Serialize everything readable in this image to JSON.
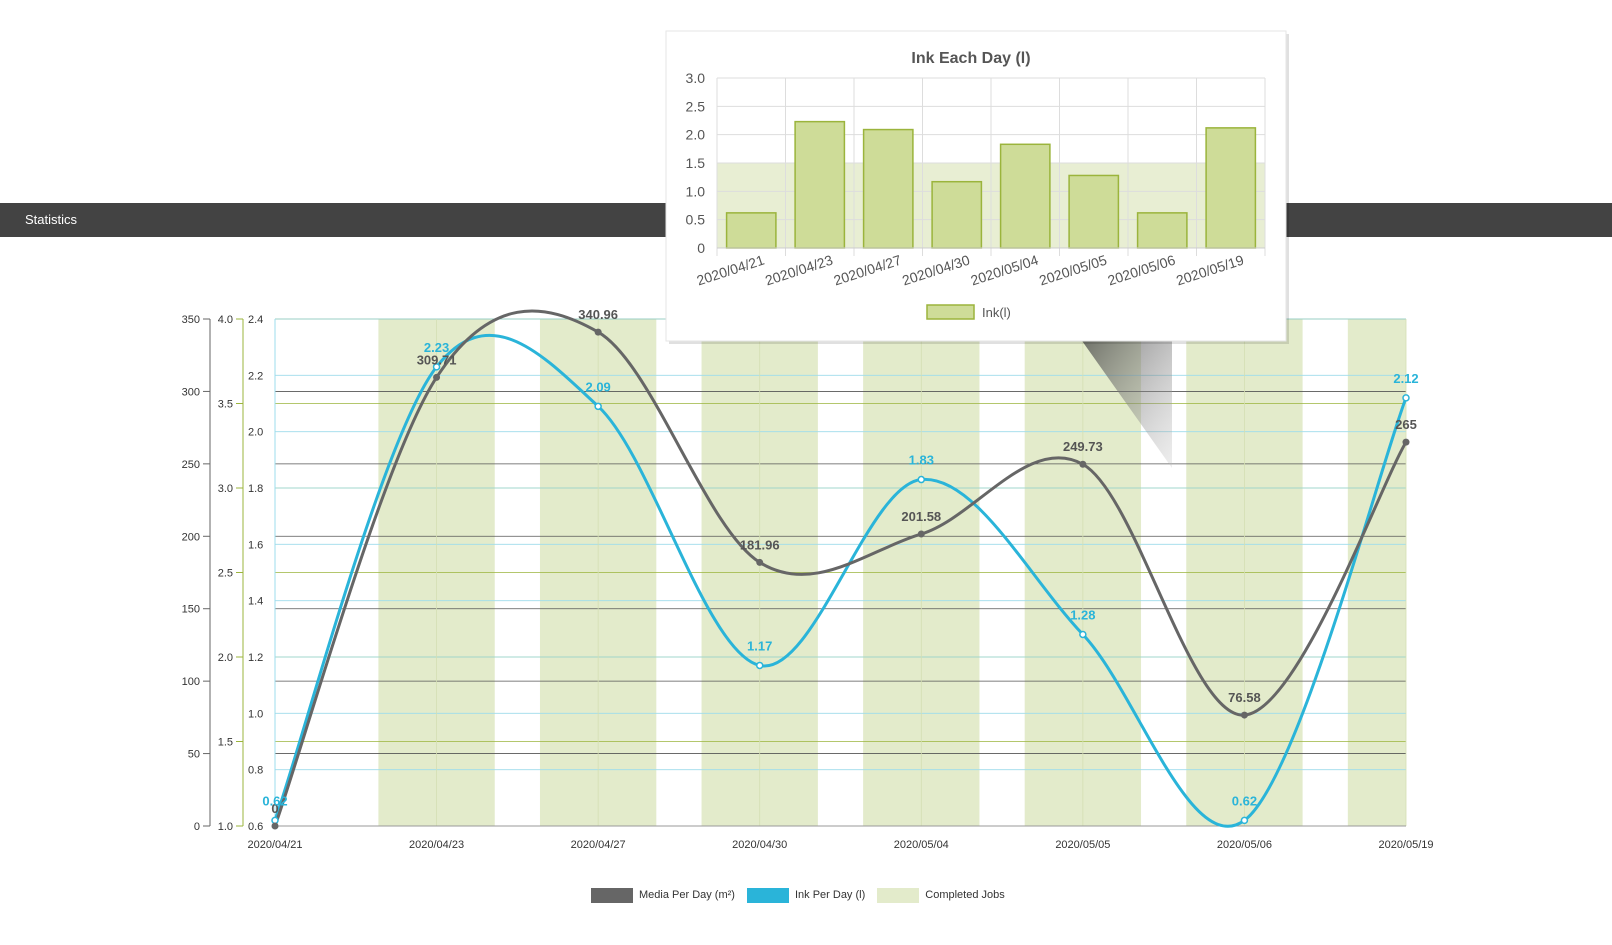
{
  "header": {
    "title": "Statistics"
  },
  "colors": {
    "media": "#666666",
    "ink": "#2ab4d9",
    "jobs_fill": "#e3ebcb",
    "jobs_axis": "#9bb43c",
    "header_bg": "#434343",
    "bar_fill": "#cedc98",
    "bar_stroke": "#9bb43c"
  },
  "legend": {
    "media_label": "Media Per Day (m²)",
    "ink_label": "Ink Per Day (l)",
    "jobs_label": "Completed Jobs"
  },
  "chart_data": [
    {
      "type": "line",
      "categories": [
        "2020/04/21",
        "2020/04/23",
        "2020/04/27",
        "2020/04/30",
        "2020/05/04",
        "2020/05/05",
        "2020/05/06",
        "2020/05/19"
      ],
      "series": [
        {
          "name": "Media Per Day (m²)",
          "axis": "media",
          "values": [
            0,
            309.71,
            340.96,
            181.96,
            201.58,
            249.73,
            76.58,
            265
          ]
        },
        {
          "name": "Ink Per Day (l)",
          "axis": "ink",
          "values": [
            0.62,
            2.23,
            2.09,
            1.17,
            1.83,
            1.28,
            0.62,
            2.12
          ]
        },
        {
          "name": "Completed Jobs",
          "axis": "jobs",
          "type": "bar",
          "values": [
            null,
            null,
            null,
            null,
            null,
            null,
            null,
            null
          ]
        }
      ],
      "axes": {
        "media": {
          "min": 0,
          "max": 350,
          "ticks": [
            0,
            50,
            100,
            150,
            200,
            250,
            300,
            350
          ]
        },
        "jobs": {
          "min": 1.0,
          "max": 4.0,
          "ticks": [
            "1.0",
            "1.5",
            "2.0",
            "2.5",
            "3.0",
            "3.5",
            "4.0"
          ]
        },
        "ink": {
          "min": 0.6,
          "max": 2.4,
          "ticks": [
            "0.6",
            "0.8",
            "1.0",
            "1.2",
            "1.4",
            "1.6",
            "1.8",
            "2.0",
            "2.2",
            "2.4"
          ]
        }
      },
      "data_labels": {
        "media": [
          "0",
          "309.71",
          "340.96",
          "181.96",
          "201.58",
          "249.73",
          "76.58",
          "265"
        ],
        "ink": [
          "0.62",
          "2.23",
          "2.09",
          "1.17",
          "1.83",
          "1.28",
          "0.62",
          "2.12"
        ]
      },
      "grid": true,
      "legend_position": "bottom"
    },
    {
      "type": "bar",
      "title": "Ink Each Day (l)",
      "categories": [
        "2020/04/21",
        "2020/04/23",
        "2020/04/27",
        "2020/04/30",
        "2020/05/04",
        "2020/05/05",
        "2020/05/06",
        "2020/05/19"
      ],
      "series": [
        {
          "name": "Ink(l)",
          "values": [
            0.62,
            2.23,
            2.09,
            1.17,
            1.83,
            1.28,
            0.62,
            2.12
          ]
        }
      ],
      "band": {
        "from": 0,
        "to": 1.5
      },
      "ylim": [
        0,
        3.0
      ],
      "yticks": [
        "0",
        "0.5",
        "1.0",
        "1.5",
        "2.0",
        "2.5",
        "3.0"
      ],
      "grid": true,
      "legend_position": "bottom"
    }
  ]
}
